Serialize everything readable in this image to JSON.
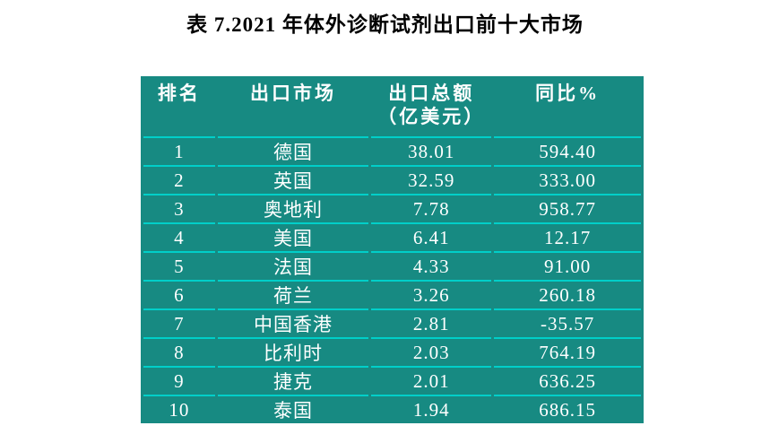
{
  "page": {
    "title": "表 7.2021 年体外诊断试剂出口前十大市场"
  },
  "colors": {
    "table_bg": "#178A82",
    "divider": "#00CFC9",
    "cell_text": "#FFFFFF",
    "title_text": "#000000",
    "page_bg": "#FFFFFF"
  },
  "table": {
    "columns": [
      {
        "label": "排名"
      },
      {
        "label": "出口市场"
      },
      {
        "label": "出口总额",
        "sublabel": "（亿美元）"
      },
      {
        "label": "同比%"
      }
    ],
    "rows": [
      {
        "rank": "1",
        "market": "德国",
        "value": "38.01",
        "yoy": "594.40"
      },
      {
        "rank": "2",
        "market": "英国",
        "value": "32.59",
        "yoy": "333.00"
      },
      {
        "rank": "3",
        "market": "奥地利",
        "value": "7.78",
        "yoy": "958.77"
      },
      {
        "rank": "4",
        "market": "美国",
        "value": "6.41",
        "yoy": "12.17"
      },
      {
        "rank": "5",
        "market": "法国",
        "value": "4.33",
        "yoy": "91.00"
      },
      {
        "rank": "6",
        "market": "荷兰",
        "value": "3.26",
        "yoy": "260.18"
      },
      {
        "rank": "7",
        "market": "中国香港",
        "value": "2.81",
        "yoy": "-35.57"
      },
      {
        "rank": "8",
        "market": "比利时",
        "value": "2.03",
        "yoy": "764.19"
      },
      {
        "rank": "9",
        "market": "捷克",
        "value": "2.01",
        "yoy": "636.25"
      },
      {
        "rank": "10",
        "market": "泰国",
        "value": "1.94",
        "yoy": "686.15"
      }
    ]
  }
}
